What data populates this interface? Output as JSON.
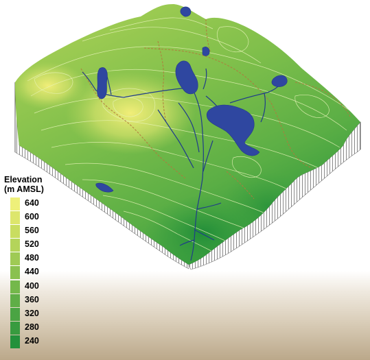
{
  "legend": {
    "title_line1": "Elevation",
    "title_line2": "(m AMSL)",
    "entries": [
      {
        "value": "640",
        "color": "#eef07a"
      },
      {
        "value": "600",
        "color": "#dde66c"
      },
      {
        "value": "560",
        "color": "#c9dd60"
      },
      {
        "value": "520",
        "color": "#b4d45a"
      },
      {
        "value": "480",
        "color": "#9fca55"
      },
      {
        "value": "440",
        "color": "#8ac150"
      },
      {
        "value": "400",
        "color": "#74b84b"
      },
      {
        "value": "360",
        "color": "#5fae47"
      },
      {
        "value": "320",
        "color": "#4aa443"
      },
      {
        "value": "280",
        "color": "#389b3f"
      },
      {
        "value": "240",
        "color": "#23913b"
      }
    ]
  },
  "colors": {
    "water": "#2f47a0",
    "stream": "#1f3c8a",
    "trail": "#b07a3c",
    "contour": "#e7f3b8"
  }
}
